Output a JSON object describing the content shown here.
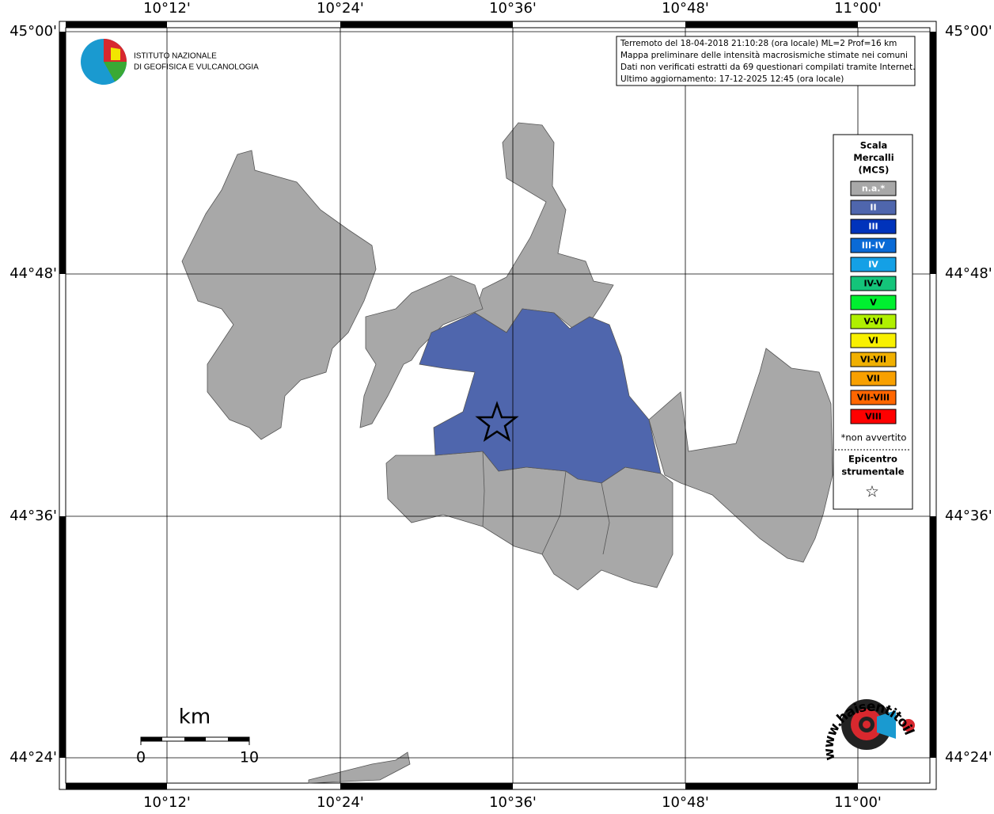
{
  "header": {
    "logo_lines": [
      "ISTITUTO NAZIONALE",
      "DI GEOFISICA E VULCANOLOGIA"
    ]
  },
  "info": {
    "lines": [
      "Terremoto del 18-04-2018 21:10:28 (ora locale) ML=2 Prof=16 km",
      "Mappa preliminare delle intensità macrosismiche stimate nei comuni",
      "Dati non verificati estratti da 69 questionari compilati tramite Internet.",
      "Ultimo aggiornamento: 17-12-2025 12:45 (ora locale)"
    ]
  },
  "grid": {
    "longitudes": [
      "10°12'",
      "10°24'",
      "10°36'",
      "10°48'",
      "11°00'"
    ],
    "latitudes": [
      "45°00'",
      "44°48'",
      "44°36'",
      "44°24'"
    ]
  },
  "legend": {
    "title": [
      "Scala",
      "Mercalli",
      "(MCS)"
    ],
    "items": [
      {
        "label": "n.a.*",
        "color": "#a8a8a8",
        "text_color": "#ffffff"
      },
      {
        "label": "II",
        "color": "#4f66ad",
        "text_color": "#ffffff"
      },
      {
        "label": "III",
        "color": "#0033bb",
        "text_color": "#ffffff"
      },
      {
        "label": "III-IV",
        "color": "#0a6ad6",
        "text_color": "#ffffff"
      },
      {
        "label": "IV",
        "color": "#14a0e6",
        "text_color": "#ffffff"
      },
      {
        "label": "IV-V",
        "color": "#14c47a",
        "text_color": "#000000"
      },
      {
        "label": "V",
        "color": "#00f030",
        "text_color": "#000000"
      },
      {
        "label": "V-VI",
        "color": "#b0f000",
        "text_color": "#000000"
      },
      {
        "label": "VI",
        "color": "#f8f000",
        "text_color": "#000000"
      },
      {
        "label": "VI-VII",
        "color": "#f0b000",
        "text_color": "#000000"
      },
      {
        "label": "VII",
        "color": "#f8a000",
        "text_color": "#000000"
      },
      {
        "label": "VII-VIII",
        "color": "#ff6600",
        "text_color": "#000000"
      },
      {
        "label": "VIII",
        "color": "#ff0000",
        "text_color": "#000000"
      }
    ],
    "note": "*non avvertito",
    "epicenter": [
      "Epicentro",
      "strumentale"
    ],
    "star": "☆"
  },
  "scale_bar": {
    "unit": "km",
    "labels": [
      "0",
      "10"
    ]
  },
  "footer_logo": {
    "text": "www.haisentitoilterremoto.it"
  }
}
